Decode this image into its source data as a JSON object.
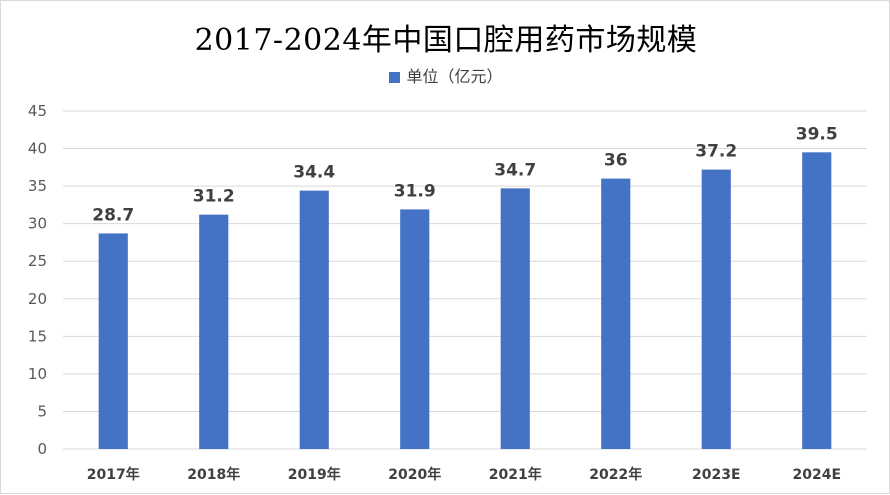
{
  "chart_data": {
    "type": "bar",
    "title": "2017-2024年中国口腔用药市场规模",
    "xlabel": "",
    "ylabel": "",
    "categories": [
      "2017年",
      "2018年",
      "2019年",
      "2020年",
      "2021年",
      "2022年",
      "2023E",
      "2024E"
    ],
    "series": [
      {
        "name": "单位（亿元）",
        "values": [
          28.7,
          31.2,
          34.4,
          31.9,
          34.7,
          36,
          37.2,
          39.5
        ],
        "color": "#4472c4"
      }
    ],
    "ylim": [
      0,
      45
    ],
    "yticks": [
      0,
      5,
      10,
      15,
      20,
      25,
      30,
      35,
      40,
      45
    ],
    "grid": true,
    "legend_position": "top"
  }
}
